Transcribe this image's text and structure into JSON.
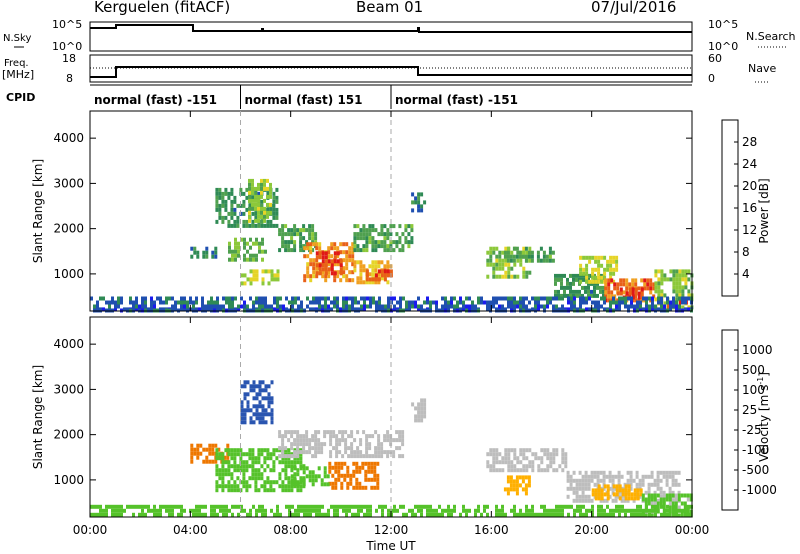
{
  "header": {
    "title": "Kerguelen (fitACF)",
    "beam": "Beam 01",
    "date": "07/Jul/2016"
  },
  "top_panels": {
    "nsky_label": "N.Sky",
    "nsky_ticks": [
      "10^5",
      "10^0"
    ],
    "nsearch_label": "N.Search",
    "nsearch_ticks": [
      "10^5",
      "10^0"
    ],
    "freq_label": "Freq.",
    "freq_unit": "[MHz]",
    "freq_ticks": [
      "18",
      "8"
    ],
    "nave_label": "Nave",
    "nave_ticks": [
      "60",
      "0"
    ],
    "cpid_label": "CPID",
    "cpid_segments": [
      {
        "label": "normal (fast) -151",
        "start": 0,
        "end": 6
      },
      {
        "label": "normal (fast) 151",
        "start": 6,
        "end": 12
      },
      {
        "label": "normal (fast) -151",
        "start": 12,
        "end": 24
      }
    ]
  },
  "colors": {
    "power": [
      "#1a1aee",
      "#1f4fb0",
      "#2f8a55",
      "#4fa04f",
      "#8cc83a",
      "#e6d428",
      "#f0a020",
      "#e86018",
      "#e01818"
    ],
    "velocity": [
      "#ee0000",
      "#ee4400",
      "#ee7700",
      "#ffb000",
      "#bdbdbd",
      "#bdbdbd",
      "#55c22a",
      "#2f8a4a",
      "#2a55b0",
      "#1a28d0"
    ]
  },
  "chart_data": [
    {
      "type": "heatmap",
      "name": "power",
      "ylabel": "Slant Range [km]",
      "yticks": [
        1000,
        2000,
        3000,
        4000
      ],
      "ylim": [
        180,
        4600
      ],
      "xlim": [
        0,
        24
      ],
      "colorbar": {
        "label": "Power [dB]",
        "ticks": [
          "4",
          "8",
          "12",
          "16",
          "20",
          "24",
          "28"
        ],
        "range": [
          0,
          32
        ]
      },
      "patches": [
        {
          "t0": 4.0,
          "t1": 5.0,
          "r0": 1400,
          "r1": 1600,
          "value": 8
        },
        {
          "t0": 5.0,
          "t1": 7.5,
          "r0": 2100,
          "r1": 2900,
          "value": 10
        },
        {
          "t0": 6.3,
          "t1": 7.2,
          "r0": 2200,
          "r1": 3100,
          "value": 16
        },
        {
          "t0": 5.5,
          "t1": 7.0,
          "r0": 1300,
          "r1": 1800,
          "value": 14
        },
        {
          "t0": 6.0,
          "t1": 7.5,
          "r0": 800,
          "r1": 1100,
          "value": 18
        },
        {
          "t0": 7.5,
          "t1": 9.0,
          "r0": 1500,
          "r1": 2100,
          "value": 12
        },
        {
          "t0": 8.5,
          "t1": 10.5,
          "r0": 900,
          "r1": 1700,
          "value": 24
        },
        {
          "t0": 9.0,
          "t1": 10.0,
          "r0": 1000,
          "r1": 1500,
          "value": 28
        },
        {
          "t0": 10.5,
          "t1": 12.0,
          "r0": 800,
          "r1": 1300,
          "value": 22
        },
        {
          "t0": 11.0,
          "t1": 12.0,
          "r0": 900,
          "r1": 1100,
          "value": 28
        },
        {
          "t0": 10.5,
          "t1": 12.8,
          "r0": 1500,
          "r1": 2100,
          "value": 12
        },
        {
          "t0": 12.8,
          "t1": 13.3,
          "r0": 2400,
          "r1": 2800,
          "value": 8
        },
        {
          "t0": 15.8,
          "t1": 17.5,
          "r0": 900,
          "r1": 1600,
          "value": 16
        },
        {
          "t0": 16.5,
          "t1": 18.5,
          "r0": 1300,
          "r1": 1600,
          "value": 12
        },
        {
          "t0": 18.5,
          "t1": 20.5,
          "r0": 500,
          "r1": 1000,
          "value": 10
        },
        {
          "t0": 19.5,
          "t1": 21.0,
          "r0": 800,
          "r1": 1400,
          "value": 18
        },
        {
          "t0": 20.5,
          "t1": 22.5,
          "r0": 400,
          "r1": 900,
          "value": 26
        },
        {
          "t0": 21.0,
          "t1": 22.0,
          "r0": 500,
          "r1": 700,
          "value": 30
        },
        {
          "t0": 22.5,
          "t1": 24.0,
          "r0": 300,
          "r1": 1100,
          "value": 16
        },
        {
          "t0": 23.0,
          "t1": 23.8,
          "r0": 250,
          "r1": 500,
          "value": 28
        },
        {
          "t0": 0.0,
          "t1": 24.0,
          "r0": 180,
          "r1": 260,
          "value": 4
        },
        {
          "t0": 0.0,
          "t1": 24.0,
          "r0": 200,
          "r1": 500,
          "value": 6
        }
      ]
    },
    {
      "type": "heatmap",
      "name": "velocity",
      "ylabel": "Slant Range [km]",
      "xlabel": "Time UT",
      "xticks": [
        "00:00",
        "04:00",
        "08:00",
        "12:00",
        "16:00",
        "20:00",
        "00:00"
      ],
      "yticks": [
        1000,
        2000,
        3000,
        4000
      ],
      "ylim": [
        180,
        4600
      ],
      "xlim": [
        0,
        24
      ],
      "colorbar": {
        "label": "Velocity [m s",
        "label_sup": "-1",
        "label_close": "]",
        "ticks": [
          "-1000",
          "-500",
          "-100",
          "-25",
          "25",
          "100",
          "500",
          "1000"
        ],
        "bins": [
          -1500,
          -1000,
          -500,
          -100,
          -25,
          0,
          25,
          100,
          500,
          1000,
          1500
        ]
      },
      "patches": [
        {
          "t0": 6.0,
          "t1": 7.2,
          "r0": 2300,
          "r1": 3200,
          "value": 800
        },
        {
          "t0": 4.0,
          "t1": 5.5,
          "r0": 1400,
          "r1": 1800,
          "value": -150
        },
        {
          "t0": 5.0,
          "t1": 8.5,
          "r0": 800,
          "r1": 1700,
          "value": 60
        },
        {
          "t0": 7.5,
          "t1": 12.5,
          "r0": 1500,
          "r1": 2100,
          "value": 5
        },
        {
          "t0": 9.5,
          "t1": 11.5,
          "r0": 800,
          "r1": 1400,
          "value": -300
        },
        {
          "t0": 8.0,
          "t1": 9.5,
          "r0": 900,
          "r1": 1300,
          "value": 60
        },
        {
          "t0": 15.8,
          "t1": 19.0,
          "r0": 1200,
          "r1": 1700,
          "value": 5
        },
        {
          "t0": 16.5,
          "t1": 17.5,
          "r0": 700,
          "r1": 1100,
          "value": -60
        },
        {
          "t0": 19.0,
          "t1": 23.5,
          "r0": 500,
          "r1": 1200,
          "value": 5
        },
        {
          "t0": 20.0,
          "t1": 22.0,
          "r0": 600,
          "r1": 900,
          "value": -60
        },
        {
          "t0": 22.0,
          "t1": 24.0,
          "r0": 200,
          "r1": 700,
          "value": 30
        },
        {
          "t0": 12.8,
          "t1": 13.3,
          "r0": 2300,
          "r1": 2800,
          "value": 5
        },
        {
          "t0": 0.0,
          "t1": 24.0,
          "r0": 200,
          "r1": 450,
          "value": 60
        }
      ]
    }
  ]
}
